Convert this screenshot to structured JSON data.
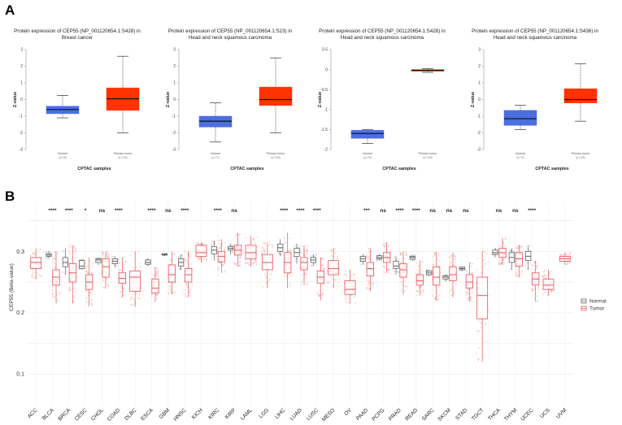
{
  "panel_a_label": "A",
  "panel_b_label": "B",
  "chart_data": [
    {
      "type": "box",
      "title": "Protein expression of CEP55 (NP_001120654.1:S428) in Breast cancer",
      "xlabel": "CPTAC samples",
      "ylabel": "Z-value",
      "ylim": [
        -3,
        3
      ],
      "yticks": [
        3,
        2,
        1,
        0,
        -1,
        -2,
        -3
      ],
      "categories": [
        "Normal",
        "Primary tumor"
      ],
      "counts": [
        "(n=18)",
        "(n=125)"
      ],
      "boxes": [
        {
          "name": "Normal",
          "min": -1.1,
          "q1": -0.85,
          "median": -0.6,
          "q3": -0.4,
          "max": 0.25,
          "color": "#4a6fe0"
        },
        {
          "name": "Primary tumor",
          "min": -2.0,
          "q1": -0.65,
          "median": 0.05,
          "q3": 0.7,
          "max": 2.6,
          "color": "#ff3300"
        }
      ]
    },
    {
      "type": "box",
      "title": "Protein expression of CEP55 (NP_001120654.1:S23) in Head and neck squamous carcinoma",
      "xlabel": "CPTAC samples",
      "ylabel": "Z-value",
      "ylim": [
        -3,
        3
      ],
      "yticks": [
        3,
        2,
        1,
        0,
        -1,
        -2,
        -3
      ],
      "categories": [
        "Normal",
        "Primary tumor"
      ],
      "counts": [
        "(n=71)",
        "(n=103)"
      ],
      "boxes": [
        {
          "name": "Normal",
          "min": -2.55,
          "q1": -1.65,
          "median": -1.3,
          "q3": -1.0,
          "max": -0.2,
          "color": "#4a6fe0"
        },
        {
          "name": "Primary tumor",
          "min": -2.0,
          "q1": -0.35,
          "median": 0.0,
          "q3": 0.75,
          "max": 2.5,
          "color": "#ff3300"
        }
      ]
    },
    {
      "type": "box",
      "title": "Protein expression of CEP55 (NP_001120654.1:S428) in Head and neck squamous carcinoma",
      "xlabel": "CPTAC samples",
      "ylabel": "Z-value",
      "ylim": [
        -2,
        0.5
      ],
      "yticks": [
        0.5,
        0,
        -0.5,
        -1,
        -1.5,
        -2
      ],
      "categories": [
        "Normal",
        "Primary tumor"
      ],
      "counts": [
        "(n=78)",
        "(n=108)"
      ],
      "boxes": [
        {
          "name": "Normal",
          "min": -1.85,
          "q1": -1.72,
          "median": -1.6,
          "q3": -1.52,
          "max": -1.5,
          "color": "#4a6fe0"
        },
        {
          "name": "Primary tumor",
          "min": -0.07,
          "q1": -0.04,
          "median": -0.02,
          "q3": 0.0,
          "max": 0.02,
          "color": "#ff3300"
        }
      ]
    },
    {
      "type": "box",
      "title": "Protein expression of CEP55 (NP_001120654.1:S436) in Head and neck squamous carcinoma",
      "xlabel": "CPTAC samples",
      "ylabel": "Z-value",
      "ylim": [
        -3,
        3
      ],
      "yticks": [
        3,
        2,
        1,
        0,
        -1,
        -2,
        -3
      ],
      "categories": [
        "Normal",
        "Primary tumor"
      ],
      "counts": [
        "(n=79)",
        "(n=108)"
      ],
      "boxes": [
        {
          "name": "Normal",
          "min": -1.8,
          "q1": -1.55,
          "median": -1.15,
          "q3": -0.65,
          "max": -0.35,
          "color": "#4a6fe0"
        },
        {
          "name": "Primary tumor",
          "min": -1.3,
          "q1": -0.2,
          "median": 0.0,
          "q3": 0.65,
          "max": 2.15,
          "color": "#ff3300"
        }
      ]
    },
    {
      "type": "box",
      "ylabel": "CEP55 (Beta-value)",
      "ylim": [
        0.05,
        0.38
      ],
      "yticks": [
        0.3,
        0.2,
        0.1
      ],
      "legend": [
        {
          "name": "Normal",
          "color": "#666666"
        },
        {
          "name": "Tumor",
          "color": "#e8555a"
        }
      ],
      "legend_position": "right",
      "categories": [
        {
          "name": "ACC",
          "sig": "",
          "tumor": [
            0.255,
            0.272,
            0.282,
            0.29,
            0.305
          ]
        },
        {
          "name": "BLCA",
          "sig": "****",
          "normal": [
            0.288,
            0.292,
            0.294,
            0.296,
            0.3
          ],
          "tumor": [
            0.215,
            0.245,
            0.258,
            0.27,
            0.3
          ]
        },
        {
          "name": "BRCA",
          "sig": "****",
          "normal": [
            0.262,
            0.275,
            0.282,
            0.29,
            0.305
          ],
          "tumor": [
            0.215,
            0.25,
            0.265,
            0.28,
            0.31
          ]
        },
        {
          "name": "CESC",
          "sig": "*",
          "normal": [
            0.27,
            0.272,
            0.276,
            0.285,
            0.287
          ],
          "tumor": [
            0.21,
            0.238,
            0.25,
            0.262,
            0.29
          ]
        },
        {
          "name": "CHOL",
          "sig": "ns",
          "normal": [
            0.278,
            0.282,
            0.286,
            0.288,
            0.29
          ],
          "tumor": [
            0.24,
            0.258,
            0.275,
            0.288,
            0.3
          ]
        },
        {
          "name": "COAD",
          "sig": "****",
          "normal": [
            0.274,
            0.28,
            0.284,
            0.288,
            0.292
          ],
          "tumor": [
            0.225,
            0.248,
            0.256,
            0.265,
            0.29
          ]
        },
        {
          "name": "DLBC",
          "sig": "",
          "tumor": [
            0.21,
            0.235,
            0.258,
            0.268,
            0.3
          ]
        },
        {
          "name": "ESCA",
          "sig": "****",
          "normal": [
            0.276,
            0.279,
            0.282,
            0.286,
            0.288
          ],
          "tumor": [
            0.218,
            0.232,
            0.24,
            0.255,
            0.275
          ]
        },
        {
          "name": "GBM",
          "sig": "ns",
          "normal": [
            0.293,
            0.294,
            0.295,
            0.296,
            0.297
          ],
          "tumor": [
            0.23,
            0.25,
            0.262,
            0.278,
            0.3
          ]
        },
        {
          "name": "HNSC",
          "sig": "****",
          "normal": [
            0.27,
            0.276,
            0.282,
            0.288,
            0.295
          ],
          "tumor": [
            0.225,
            0.25,
            0.262,
            0.272,
            0.3
          ]
        },
        {
          "name": "KICH",
          "sig": "",
          "tumor": [
            0.282,
            0.292,
            0.298,
            0.31,
            0.315
          ]
        },
        {
          "name": "KIRC",
          "sig": "****",
          "normal": [
            0.285,
            0.296,
            0.302,
            0.308,
            0.318
          ],
          "tumor": [
            0.265,
            0.283,
            0.292,
            0.3,
            0.32
          ]
        },
        {
          "name": "KIRP",
          "sig": "ns",
          "normal": [
            0.295,
            0.302,
            0.305,
            0.308,
            0.312
          ],
          "tumor": [
            0.275,
            0.294,
            0.302,
            0.31,
            0.33
          ]
        },
        {
          "name": "LAML",
          "sig": "",
          "tumor": [
            0.275,
            0.288,
            0.298,
            0.31,
            0.325
          ]
        },
        {
          "name": "LGG",
          "sig": "",
          "tumor": [
            0.24,
            0.27,
            0.282,
            0.295,
            0.315
          ]
        },
        {
          "name": "LIHC",
          "sig": "****",
          "normal": [
            0.292,
            0.3,
            0.306,
            0.312,
            0.32
          ],
          "tumor": [
            0.24,
            0.265,
            0.282,
            0.298,
            0.33
          ]
        },
        {
          "name": "LUAD",
          "sig": "****",
          "normal": [
            0.28,
            0.292,
            0.298,
            0.305,
            0.312
          ],
          "tumor": [
            0.245,
            0.27,
            0.282,
            0.29,
            0.31
          ]
        },
        {
          "name": "LUSC",
          "sig": "****",
          "normal": [
            0.276,
            0.282,
            0.286,
            0.29,
            0.295
          ],
          "tumor": [
            0.22,
            0.248,
            0.258,
            0.268,
            0.29
          ]
        },
        {
          "name": "MESO",
          "sig": "",
          "tumor": [
            0.24,
            0.262,
            0.272,
            0.285,
            0.305
          ]
        },
        {
          "name": "OV",
          "sig": "",
          "tumor": [
            0.215,
            0.23,
            0.238,
            0.252,
            0.27
          ]
        },
        {
          "name": "PAAD",
          "sig": "***",
          "normal": [
            0.278,
            0.284,
            0.288,
            0.292,
            0.295
          ],
          "tumor": [
            0.235,
            0.26,
            0.272,
            0.282,
            0.305
          ]
        },
        {
          "name": "PCPG",
          "sig": "ns",
          "normal": [
            0.285,
            0.288,
            0.29,
            0.293,
            0.295
          ],
          "tumor": [
            0.265,
            0.282,
            0.29,
            0.298,
            0.315
          ]
        },
        {
          "name": "PRAD",
          "sig": "****",
          "normal": [
            0.262,
            0.272,
            0.276,
            0.284,
            0.292
          ],
          "tumor": [
            0.23,
            0.258,
            0.27,
            0.28,
            0.3
          ]
        },
        {
          "name": "READ",
          "sig": "****",
          "normal": [
            0.284,
            0.287,
            0.29,
            0.292,
            0.294
          ],
          "tumor": [
            0.228,
            0.245,
            0.252,
            0.262,
            0.285
          ]
        },
        {
          "name": "SARC",
          "sig": "ns",
          "normal": [
            0.26,
            0.262,
            0.265,
            0.268,
            0.27
          ],
          "tumor": [
            0.22,
            0.245,
            0.258,
            0.275,
            0.3
          ]
        },
        {
          "name": "SKCM",
          "sig": "ns",
          "normal": [
            0.252,
            0.255,
            0.258,
            0.26,
            0.262
          ],
          "tumor": [
            0.225,
            0.252,
            0.262,
            0.275,
            0.298
          ]
        },
        {
          "name": "STAD",
          "sig": "ns",
          "normal": [
            0.268,
            0.27,
            0.272,
            0.274,
            0.276
          ],
          "tumor": [
            0.218,
            0.24,
            0.25,
            0.262,
            0.282
          ]
        },
        {
          "name": "TGCT",
          "sig": "",
          "tumor": [
            0.12,
            0.19,
            0.228,
            0.258,
            0.3
          ]
        },
        {
          "name": "THCA",
          "sig": "ns",
          "normal": [
            0.29,
            0.295,
            0.298,
            0.302,
            0.306
          ],
          "tumor": [
            0.278,
            0.29,
            0.298,
            0.305,
            0.322
          ]
        },
        {
          "name": "THYM",
          "sig": "ns",
          "normal": [
            0.27,
            0.282,
            0.29,
            0.298,
            0.305
          ],
          "tumor": [
            0.258,
            0.276,
            0.288,
            0.298,
            0.31
          ]
        },
        {
          "name": "UCEC",
          "sig": "****",
          "normal": [
            0.27,
            0.285,
            0.292,
            0.3,
            0.31
          ],
          "tumor": [
            0.218,
            0.245,
            0.255,
            0.265,
            0.285
          ]
        },
        {
          "name": "UCS",
          "sig": "",
          "tumor": [
            0.228,
            0.238,
            0.245,
            0.255,
            0.27
          ]
        },
        {
          "name": "UVM",
          "sig": "",
          "tumor": [
            0.278,
            0.284,
            0.288,
            0.292,
            0.298
          ]
        }
      ]
    }
  ]
}
